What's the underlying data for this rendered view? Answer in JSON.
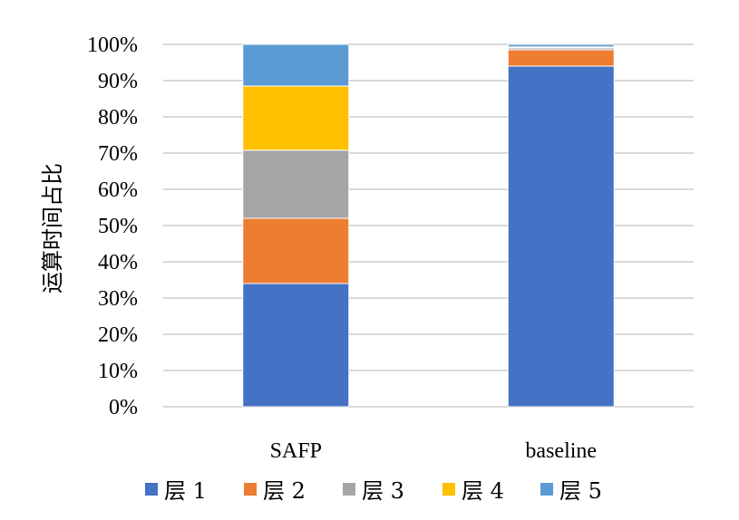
{
  "chart_data": {
    "type": "bar",
    "stacked": "percent",
    "categories": [
      "SAFP",
      "baseline"
    ],
    "series": [
      {
        "name": "层 1",
        "color": "#4472C4",
        "values": [
          34,
          94
        ]
      },
      {
        "name": "层 2",
        "color": "#ED7D31",
        "values": [
          18,
          4.5
        ]
      },
      {
        "name": "层 3",
        "color": "#A5A5A5",
        "values": [
          18.8,
          0.5
        ]
      },
      {
        "name": "层 4",
        "color": "#FFC000",
        "values": [
          17.7,
          0.3
        ]
      },
      {
        "name": "层 5",
        "color": "#5B9BD5",
        "values": [
          11.5,
          0.7
        ]
      }
    ],
    "ylabel": "运算时间占比",
    "xlabel": "",
    "title": "",
    "ylim": [
      0,
      100
    ],
    "yticks": [
      "0%",
      "10%",
      "20%",
      "30%",
      "40%",
      "50%",
      "60%",
      "70%",
      "80%",
      "90%",
      "100%"
    ],
    "grid": true,
    "legend": "bottom"
  }
}
